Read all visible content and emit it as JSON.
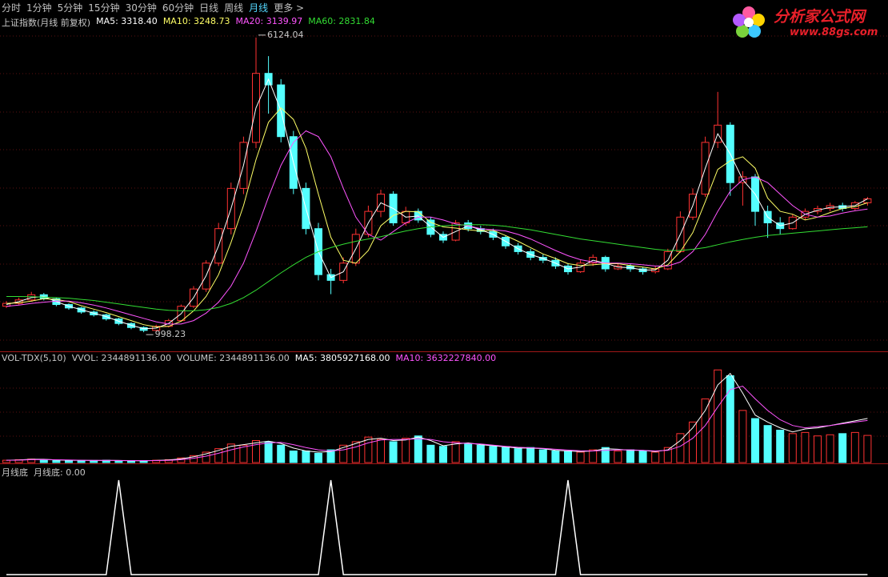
{
  "toolbar": {
    "tabs": [
      "分时",
      "1分钟",
      "5分钟",
      "15分钟",
      "30分钟",
      "60分钟",
      "日线",
      "周线",
      "月线",
      "更多 >"
    ],
    "active": 8
  },
  "logo": {
    "name": "分析家公式网",
    "url": "www.88gs.com"
  },
  "chart_data": [
    {
      "type": "candlestick",
      "title": "上证指数(月线 前复权)",
      "up_color": "#ff3232",
      "down_color": "#54ffff",
      "ylim": [
        680,
        6470
      ],
      "open": [
        1450,
        1500,
        1560,
        1650,
        1580,
        1480,
        1420,
        1350,
        1300,
        1230,
        1150,
        1080,
        1030,
        1100,
        1200,
        1450,
        1750,
        2200,
        2800,
        3500,
        4300,
        5500,
        5300,
        4400,
        3500,
        2800,
        2000,
        1900,
        2200,
        2700,
        3100,
        3400,
        2900,
        3100,
        2950,
        2700,
        2600,
        2900,
        2800,
        2750,
        2650,
        2500,
        2400,
        2300,
        2250,
        2150,
        2050,
        2200,
        2300,
        2100,
        2150,
        2100,
        2050,
        2100,
        2400,
        3000,
        3400,
        4300,
        4600,
        3600,
        3700,
        3100,
        2900,
        2800,
        3000,
        3100,
        3150,
        3200,
        3150,
        3250
      ],
      "high": [
        1540,
        1600,
        1700,
        1680,
        1600,
        1500,
        1440,
        1380,
        1320,
        1250,
        1170,
        1100,
        1130,
        1230,
        1480,
        1800,
        2250,
        2900,
        3600,
        4400,
        6124.04,
        5800,
        5400,
        4500,
        3600,
        2900,
        2100,
        2300,
        2800,
        3200,
        3478,
        3450,
        3180,
        3150,
        3000,
        2750,
        2950,
        2950,
        2850,
        2800,
        2680,
        2550,
        2450,
        2350,
        2300,
        2200,
        2250,
        2350,
        2330,
        2200,
        2180,
        2130,
        2150,
        2450,
        3100,
        3500,
        4400,
        5178,
        4650,
        3800,
        3750,
        3200,
        3000,
        3050,
        3150,
        3200,
        3250,
        3250,
        3280,
        3350
      ],
      "low": [
        1420,
        1470,
        1530,
        1550,
        1450,
        1390,
        1320,
        1270,
        1200,
        1120,
        1050,
        998.23,
        1010,
        1080,
        1180,
        1420,
        1700,
        2150,
        2700,
        3400,
        4200,
        4800,
        4300,
        3400,
        2700,
        1900,
        1660,
        1850,
        2150,
        2650,
        3000,
        2850,
        2850,
        2900,
        2650,
        2550,
        2580,
        2750,
        2700,
        2600,
        2450,
        2350,
        2250,
        2200,
        2100,
        2000,
        2030,
        2150,
        2050,
        2080,
        2050,
        2000,
        2020,
        2080,
        2380,
        2950,
        3350,
        4200,
        3370,
        3200,
        2850,
        2640,
        2700,
        2780,
        2950,
        3050,
        3100,
        3100,
        3120,
        3200
      ],
      "close": [
        1500,
        1560,
        1650,
        1580,
        1480,
        1420,
        1350,
        1300,
        1230,
        1150,
        1080,
        1030,
        1100,
        1200,
        1450,
        1750,
        2200,
        2800,
        3500,
        4300,
        5500,
        5300,
        4400,
        3500,
        2800,
        2000,
        1900,
        2200,
        2700,
        3100,
        3400,
        2900,
        3100,
        2950,
        2700,
        2600,
        2900,
        2800,
        2750,
        2650,
        2500,
        2400,
        2300,
        2250,
        2150,
        2050,
        2200,
        2300,
        2100,
        2150,
        2100,
        2050,
        2100,
        2400,
        3000,
        3400,
        4300,
        4600,
        3600,
        3700,
        3100,
        2900,
        2800,
        3000,
        3100,
        3150,
        3200,
        3150,
        3250,
        3318
      ],
      "series": [
        {
          "name": "MA5",
          "legend": "MA5: 3318.40",
          "color": "#ffffff",
          "values": [
            1480,
            1530,
            1600,
            1620,
            1530,
            1450,
            1390,
            1330,
            1270,
            1190,
            1120,
            1060,
            1070,
            1150,
            1320,
            1600,
            1980,
            2500,
            3150,
            3900,
            4900,
            5400,
            4850,
            3950,
            3150,
            2400,
            1950,
            2050,
            2450,
            2900,
            3250,
            3150,
            3000,
            3020,
            2830,
            2650,
            2750,
            2850,
            2780,
            2700,
            2580,
            2450,
            2350,
            2280,
            2200,
            2100,
            2130,
            2250,
            2200,
            2130,
            2120,
            2080,
            2080,
            2250,
            2700,
            3200,
            3850,
            4450,
            4100,
            3650,
            3400,
            3000,
            2850,
            2900,
            3050,
            3120,
            3170,
            3180,
            3200,
            3318.4
          ]
        },
        {
          "name": "MA10",
          "legend": "MA10: 3248.73",
          "color": "#ffff66",
          "values": [
            1500,
            1510,
            1540,
            1580,
            1570,
            1530,
            1460,
            1400,
            1340,
            1270,
            1200,
            1130,
            1090,
            1100,
            1190,
            1370,
            1620,
            2000,
            2560,
            3200,
            4000,
            4650,
            4900,
            4700,
            4200,
            3400,
            2650,
            2250,
            2200,
            2420,
            2850,
            3030,
            3100,
            3090,
            2910,
            2830,
            2810,
            2780,
            2760,
            2770,
            2680,
            2580,
            2470,
            2360,
            2280,
            2190,
            2160,
            2170,
            2190,
            2190,
            2160,
            2130,
            2100,
            2170,
            2400,
            2730,
            3270,
            3830,
            3980,
            4050,
            3850,
            3330,
            3100,
            3050,
            2950,
            3000,
            3080,
            3150,
            3180,
            3248.73
          ]
        },
        {
          "name": "MA20",
          "legend": "MA20: 3139.97",
          "color": "#ff55ff",
          "values": [
            1450,
            1470,
            1500,
            1520,
            1540,
            1540,
            1510,
            1470,
            1420,
            1360,
            1300,
            1240,
            1180,
            1140,
            1140,
            1200,
            1330,
            1520,
            1800,
            2200,
            2750,
            3350,
            3900,
            4300,
            4500,
            4400,
            4050,
            3500,
            3000,
            2700,
            2600,
            2750,
            2900,
            3000,
            3000,
            2950,
            2880,
            2850,
            2800,
            2780,
            2760,
            2700,
            2620,
            2520,
            2420,
            2330,
            2260,
            2220,
            2200,
            2200,
            2190,
            2170,
            2150,
            2150,
            2220,
            2400,
            2700,
            3100,
            3450,
            3650,
            3700,
            3600,
            3400,
            3200,
            3050,
            3000,
            3020,
            3070,
            3110,
            3139.97
          ]
        },
        {
          "name": "MA60",
          "legend": "MA60: 2831.84",
          "color": "#33dd33",
          "values": [
            1620,
            1620,
            1615,
            1610,
            1600,
            1590,
            1570,
            1550,
            1520,
            1490,
            1460,
            1430,
            1400,
            1380,
            1370,
            1370,
            1390,
            1430,
            1500,
            1600,
            1730,
            1880,
            2030,
            2170,
            2300,
            2400,
            2470,
            2530,
            2580,
            2620,
            2660,
            2710,
            2760,
            2800,
            2830,
            2850,
            2860,
            2870,
            2870,
            2860,
            2840,
            2810,
            2780,
            2740,
            2700,
            2660,
            2620,
            2590,
            2560,
            2530,
            2500,
            2470,
            2440,
            2420,
            2420,
            2440,
            2470,
            2520,
            2570,
            2610,
            2650,
            2680,
            2700,
            2720,
            2740,
            2760,
            2780,
            2800,
            2815,
            2831.84
          ]
        }
      ],
      "annotations": [
        {
          "text": "6124.04",
          "value": 6124.04
        },
        {
          "text": "998.23",
          "value": 998.23
        }
      ]
    },
    {
      "type": "volume",
      "title": "VOL-TDX(5,10)",
      "legend": [
        "VVOL: 2344891136.00",
        "VOLUME: 2344891136.00"
      ],
      "ylim": [
        0,
        8500000000
      ],
      "values": [
        200000000.0,
        250000000.0,
        300000000.0,
        250000000.0,
        200000000.0,
        200000000.0,
        180000000.0,
        180000000.0,
        200000000.0,
        150000000.0,
        150000000.0,
        170000000.0,
        200000000.0,
        250000000.0,
        400000000.0,
        600000000.0,
        900000000.0,
        1200000000.0,
        1600000000.0,
        1500000000.0,
        1900000000.0,
        1800000000.0,
        1500000000.0,
        1000000000.0,
        1000000000.0,
        800000000.0,
        1100000000.0,
        1500000000.0,
        1800000000.0,
        2200000000.0,
        2000000000.0,
        1800000000.0,
        2100000000.0,
        2300000000.0,
        1500000000.0,
        1400000000.0,
        1800000000.0,
        1600000000.0,
        1500000000.0,
        1400000000.0,
        1300000000.0,
        1200000000.0,
        1300000000.0,
        1100000000.0,
        1000000000.0,
        1000000000.0,
        900000000.0,
        1100000000.0,
        1300000000.0,
        1000000000.0,
        1100000000.0,
        1000000000.0,
        900000000.0,
        1300000000.0,
        2500000000.0,
        3500000000.0,
        5500000000.0,
        8000000000.0,
        7500000000.0,
        4500000000.0,
        3800000000.0,
        3200000000.0,
        2800000000.0,
        2500000000.0,
        2600000000.0,
        2300000000.0,
        2400000000.0,
        2500000000.0,
        2600000000.0,
        2344891136
      ],
      "series": [
        {
          "name": "MA5",
          "legend": "MA5: 3805927168.00",
          "color": "#ffffff",
          "values": [
            200000000.0,
            220000000.0,
            280000000.0,
            280000000.0,
            220000000.0,
            200000000.0,
            190000000.0,
            180000000.0,
            190000000.0,
            180000000.0,
            150000000.0,
            160000000.0,
            180000000.0,
            220000000.0,
            320000000.0,
            500000000.0,
            750000000.0,
            1050000000.0,
            1400000000.0,
            1550000000.0,
            1700000000.0,
            1850000000.0,
            1650000000.0,
            1250000000.0,
            1000000000.0,
            900000000.0,
            950000000.0,
            1300000000.0,
            1650000000.0,
            2000000000.0,
            2100000000.0,
            1900000000.0,
            1950000000.0,
            2200000000.0,
            1900000000.0,
            1450000000.0,
            1600000000.0,
            1700000000.0,
            1550000000.0,
            1450000000.0,
            1350000000.0,
            1250000000.0,
            1250000000.0,
            1200000000.0,
            1050000000.0,
            1000000000.0,
            950000000.0,
            1000000000.0,
            1200000000.0,
            1150000000.0,
            1050000000.0,
            1050000000.0,
            950000000.0,
            1100000000.0,
            1900000000.0,
            3000000000.0,
            4500000000.0,
            6700000000.0,
            7700000000.0,
            6000000000.0,
            4100000000.0,
            3500000000.0,
            3000000000.0,
            2650000000.0,
            2900000000.0,
            3000000000.0,
            3200000000.0,
            3400000000.0,
            3600000000.0,
            3805927168
          ]
        },
        {
          "name": "MA10",
          "legend": "MA10: 3632227840.00",
          "color": "#ff55ff",
          "values": [
            200000000.0,
            210000000.0,
            250000000.0,
            260000000.0,
            240000000.0,
            220000000.0,
            200000000.0,
            190000000.0,
            190000000.0,
            180000000.0,
            170000000.0,
            170000000.0,
            170000000.0,
            190000000.0,
            250000000.0,
            370000000.0,
            550000000.0,
            800000000.0,
            1100000000.0,
            1350000000.0,
            1550000000.0,
            1700000000.0,
            1750000000.0,
            1550000000.0,
            1300000000.0,
            1100000000.0,
            1000000000.0,
            1100000000.0,
            1350000000.0,
            1700000000.0,
            1950000000.0,
            2000000000.0,
            2000000000.0,
            2050000000.0,
            2000000000.0,
            1800000000.0,
            1700000000.0,
            1650000000.0,
            1600000000.0,
            1500000000.0,
            1400000000.0,
            1320000000.0,
            1280000000.0,
            1220000000.0,
            1150000000.0,
            1080000000.0,
            1020000000.0,
            1000000000.0,
            1050000000.0,
            1100000000.0,
            1100000000.0,
            1050000000.0,
            1000000000.0,
            1050000000.0,
            1400000000.0,
            2100000000.0,
            3200000000.0,
            4800000000.0,
            6300000000.0,
            6600000000.0,
            5500000000.0,
            4500000000.0,
            3700000000.0,
            3200000000.0,
            3000000000.0,
            3100000000.0,
            3200000000.0,
            3350000000.0,
            3500000000.0,
            3632227840
          ]
        }
      ]
    },
    {
      "type": "spike",
      "title": "月线底",
      "legend": "月线底: 0.00",
      "color": "#ffffff",
      "ylim": [
        0,
        1
      ],
      "values": [
        0,
        0,
        0,
        0,
        0,
        0,
        0,
        0,
        0,
        1,
        0,
        0,
        0,
        0,
        0,
        0,
        0,
        0,
        0,
        0,
        0,
        0,
        0,
        0,
        0,
        0,
        1,
        0,
        0,
        0,
        0,
        0,
        0,
        0,
        0,
        0,
        0,
        0,
        0,
        0,
        0,
        0,
        0,
        0,
        0,
        1,
        0,
        0,
        0,
        0,
        0,
        0,
        0,
        0,
        0,
        0,
        0,
        0,
        0,
        0,
        0,
        0,
        0,
        0,
        0,
        0,
        0,
        0,
        0,
        0
      ]
    }
  ]
}
